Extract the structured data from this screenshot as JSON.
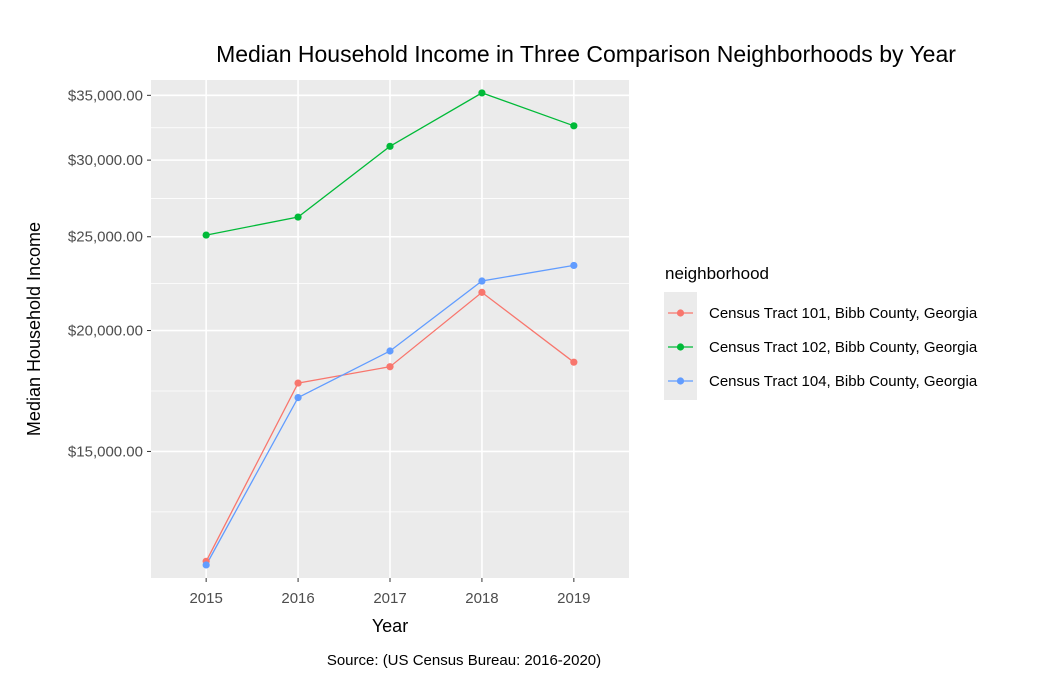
{
  "chart_data": {
    "type": "line",
    "title": "Median Household Income in Three Comparison Neighborhoods by Year",
    "xlabel": "Year",
    "ylabel": "Median Household Income",
    "caption": "Source: (US Census Bureau: 2016-2020)",
    "x": [
      2015,
      2016,
      2017,
      2018,
      2019
    ],
    "x_ticks": [
      "2015",
      "2016",
      "2017",
      "2018",
      "2019"
    ],
    "y_scale": "log",
    "ylim": [
      11100,
      36300
    ],
    "y_ticks": [
      15000,
      20000,
      25000,
      30000,
      35000
    ],
    "y_tick_labels": [
      "$15,000.00",
      "$20,000.00",
      "$25,000.00",
      "$30,000.00",
      "$35,000.00"
    ],
    "grid": true,
    "legend": {
      "title": "neighborhood",
      "position": "right"
    },
    "series": [
      {
        "name": "Census Tract 101, Bibb County, Georgia",
        "color": "#F8766D",
        "values": [
          11550,
          17650,
          18350,
          21900,
          18550
        ]
      },
      {
        "name": "Census Tract 102, Bibb County, Georgia",
        "color": "#00BA38",
        "values": [
          25100,
          26200,
          31000,
          35200,
          32550
        ]
      },
      {
        "name": "Census Tract 104, Bibb County, Georgia",
        "color": "#619CFF",
        "values": [
          11450,
          17050,
          19050,
          22500,
          23350
        ]
      }
    ]
  }
}
